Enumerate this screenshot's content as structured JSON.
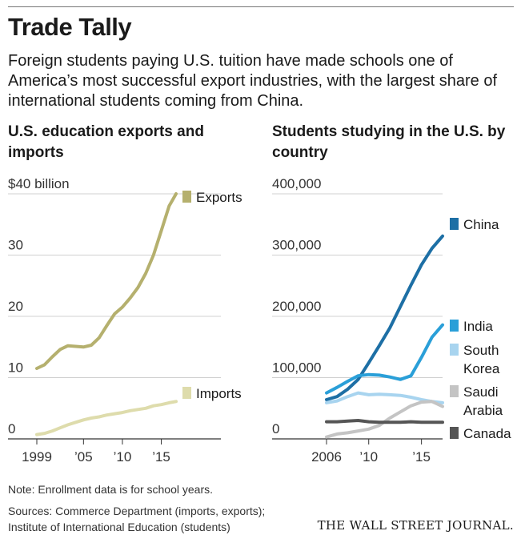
{
  "header": {
    "title": "Trade Tally",
    "subtitle": "Foreign students paying U.S. tuition have made schools one of America’s most successful export industries, with the largest share of international students coming from China."
  },
  "footer": {
    "note": "Note: Enrollment data is for school years.",
    "sources_line1": "Sources: Commerce Department (imports, exports);",
    "sources_line2": "Institute of International Education (students)",
    "credit": "THE WALL STREET JOURNAL."
  },
  "chart_data": [
    {
      "type": "line",
      "title": "U.S. education exports and imports",
      "unit_label": "$40 billion",
      "ylim": [
        0,
        40
      ],
      "yticks": [
        {
          "value": 40,
          "label": "$40 billion"
        },
        {
          "value": 30,
          "label": "30"
        },
        {
          "value": 20,
          "label": "20"
        },
        {
          "value": 10,
          "label": "10"
        },
        {
          "value": 0,
          "label": "0"
        }
      ],
      "xlim": [
        1999,
        2017
      ],
      "xticks": [
        {
          "value": 1999,
          "label": "1999"
        },
        {
          "value": 2005,
          "label": "’05"
        },
        {
          "value": 2010,
          "label": "’10"
        },
        {
          "value": 2015,
          "label": "’15"
        }
      ],
      "grid": true,
      "series": [
        {
          "name": "Exports",
          "color": "#b5b06e",
          "x": [
            1999,
            2000,
            2001,
            2002,
            2003,
            2004,
            2005,
            2006,
            2007,
            2008,
            2009,
            2010,
            2011,
            2012,
            2013,
            2014,
            2015,
            2016,
            2016.9
          ],
          "y": [
            11.5,
            12.1,
            13.4,
            14.6,
            15.2,
            15.1,
            15.0,
            15.3,
            16.5,
            18.5,
            20.4,
            21.5,
            23.0,
            24.7,
            27.0,
            30.0,
            34.0,
            38.0,
            40.0
          ]
        },
        {
          "name": "Imports",
          "color": "#dedcac",
          "x": [
            1999,
            2000,
            2001,
            2002,
            2003,
            2004,
            2005,
            2006,
            2007,
            2008,
            2009,
            2010,
            2011,
            2012,
            2013,
            2014,
            2015,
            2016,
            2016.9
          ],
          "y": [
            0.7,
            0.9,
            1.3,
            1.8,
            2.3,
            2.7,
            3.1,
            3.4,
            3.6,
            3.9,
            4.1,
            4.3,
            4.6,
            4.8,
            5.0,
            5.4,
            5.6,
            5.9,
            6.1
          ]
        }
      ]
    },
    {
      "type": "line",
      "title": "Students studying in the U.S. by country",
      "ylim": [
        0,
        400000
      ],
      "yticks": [
        {
          "value": 400000,
          "label": "400,000"
        },
        {
          "value": 300000,
          "label": "300,000"
        },
        {
          "value": 200000,
          "label": "200,000"
        },
        {
          "value": 100000,
          "label": "100,000"
        },
        {
          "value": 0,
          "label": "0"
        }
      ],
      "xlim": [
        2006,
        2017
      ],
      "xticks": [
        {
          "value": 2006,
          "label": "2006"
        },
        {
          "value": 2010,
          "label": "’10"
        },
        {
          "value": 2015,
          "label": "’15"
        }
      ],
      "grid": true,
      "series": [
        {
          "name": "China",
          "color": "#1d6fa5",
          "x": [
            2006,
            2007,
            2008,
            2009,
            2010,
            2011,
            2012,
            2013,
            2014,
            2015,
            2016,
            2017
          ],
          "y": [
            64000,
            69000,
            81000,
            97000,
            124000,
            152000,
            181000,
            216000,
            251000,
            284000,
            311000,
            331000
          ]
        },
        {
          "name": "India",
          "color": "#2a9fd8",
          "x": [
            2006,
            2007,
            2008,
            2009,
            2010,
            2011,
            2012,
            2013,
            2014,
            2015,
            2016,
            2017
          ],
          "y": [
            75000,
            84000,
            94000,
            103000,
            105000,
            104000,
            101000,
            97000,
            103000,
            133000,
            166000,
            186000
          ]
        },
        {
          "name": "South Korea",
          "color": "#a8d4ef",
          "x": [
            2006,
            2007,
            2008,
            2009,
            2010,
            2011,
            2012,
            2013,
            2014,
            2015,
            2016,
            2017
          ],
          "y": [
            59000,
            62000,
            69000,
            75000,
            72000,
            73000,
            72000,
            71000,
            68000,
            64000,
            61000,
            59000
          ]
        },
        {
          "name": "Saudi Arabia",
          "color": "#c4c4c4",
          "x": [
            2006,
            2007,
            2008,
            2009,
            2010,
            2011,
            2012,
            2013,
            2014,
            2015,
            2016,
            2017
          ],
          "y": [
            3000,
            8000,
            10000,
            13000,
            16000,
            22000,
            34000,
            44000,
            54000,
            60000,
            61000,
            53000
          ]
        },
        {
          "name": "Canada",
          "color": "#555555",
          "x": [
            2006,
            2007,
            2008,
            2009,
            2010,
            2011,
            2012,
            2013,
            2014,
            2015,
            2016,
            2017
          ],
          "y": [
            28000,
            28000,
            29000,
            30000,
            28000,
            27000,
            27000,
            27000,
            28000,
            27000,
            27000,
            27000
          ]
        }
      ]
    }
  ]
}
